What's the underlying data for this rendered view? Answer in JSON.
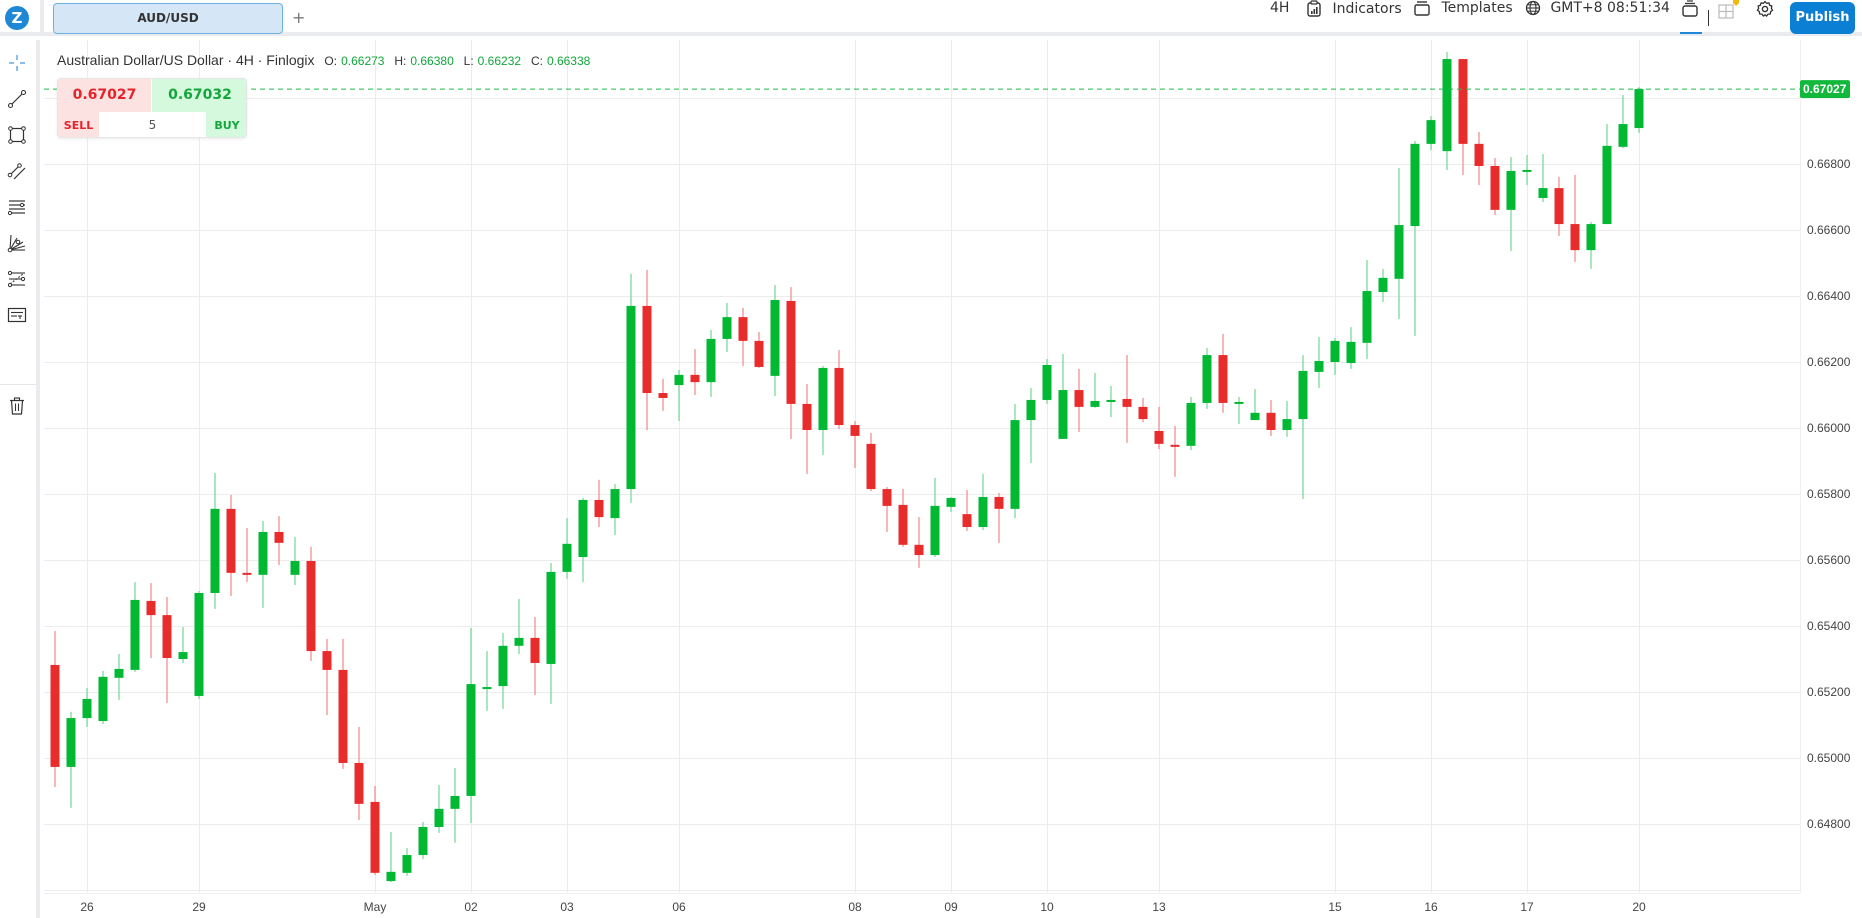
{
  "topbar": {
    "logo_glyph": "Z",
    "symbol_tab": "AUD/USD",
    "add_tab": "+",
    "timeframe": "4H",
    "indicators_label": "Indicators",
    "templates_label": "Templates",
    "timezone": "GMT+8",
    "clock": "08:51:34",
    "publish_label": "Publish",
    "icons": [
      "logo-icon",
      "indicators-icon",
      "templates-icon",
      "globe-icon",
      "layers-icon",
      "layout-grid-icon",
      "settings-gear-icon"
    ]
  },
  "toolbar": {
    "tools": [
      {
        "name": "crosshair-tool",
        "icon": "crosshair-icon"
      },
      {
        "name": "trend-line-tool",
        "icon": "trend-line-icon"
      },
      {
        "name": "rectangle-tool",
        "icon": "rectangle-icon"
      },
      {
        "name": "parallel-channel-tool",
        "icon": "parallel-channel-icon"
      },
      {
        "name": "horizontal-lines-tool",
        "icon": "horizontal-lines-icon"
      },
      {
        "name": "fib-fan-tool",
        "icon": "fib-fan-icon"
      },
      {
        "name": "fib-retracement-tool",
        "icon": "fib-retracement-icon"
      },
      {
        "name": "text-note-tool",
        "icon": "text-note-icon"
      },
      {
        "name": "delete-all-tool",
        "icon": "trash-icon"
      }
    ]
  },
  "legend": {
    "title": "Australian Dollar/US Dollar · 4H · Finlogix",
    "o_label": "O:",
    "o_value": "0.66273",
    "h_label": "H:",
    "h_value": "0.66380",
    "l_label": "L:",
    "l_value": "0.66232",
    "c_label": "C:",
    "c_value": "0.66338"
  },
  "trade_panel": {
    "sell_price": "0.67027",
    "buy_price": "0.67032",
    "sell_label": "SELL",
    "buy_label": "BUY",
    "quantity": "5"
  },
  "colors": {
    "up": "#00b833",
    "down": "#e82c2c",
    "up_wick": "#7dd99a",
    "down_wick": "#f09090",
    "grid": "#ececec",
    "current_price": "#1fbb4a",
    "accent": "#0a7fd4"
  },
  "chart_data": {
    "type": "candlestick",
    "title": "Australian Dollar/US Dollar · 4H · Finlogix",
    "symbol": "AUD/USD",
    "timeframe": "4H",
    "current_price": 0.67027,
    "current_price_label": "0.67027",
    "ylim": [
      0.6462,
      0.6716
    ],
    "y_ticks": [
      "0.64800",
      "0.65000",
      "0.65200",
      "0.65400",
      "0.65600",
      "0.65800",
      "0.66000",
      "0.66200",
      "0.66400",
      "0.66600",
      "0.66800"
    ],
    "y_tick_values": [
      0.648,
      0.65,
      0.652,
      0.654,
      0.656,
      0.658,
      0.66,
      0.662,
      0.664,
      0.666,
      0.668
    ],
    "x_ticks": [
      {
        "label": "26",
        "index": 2
      },
      {
        "label": "29",
        "index": 9
      },
      {
        "label": "May",
        "index": 20
      },
      {
        "label": "02",
        "index": 26
      },
      {
        "label": "03",
        "index": 32
      },
      {
        "label": "06",
        "index": 39
      },
      {
        "label": "08",
        "index": 50
      },
      {
        "label": "09",
        "index": 56
      },
      {
        "label": "10",
        "index": 62
      },
      {
        "label": "13",
        "index": 69
      },
      {
        "label": "15",
        "index": 80
      },
      {
        "label": "16",
        "index": 86
      },
      {
        "label": "17",
        "index": 92
      },
      {
        "label": "20",
        "index": 99
      }
    ],
    "grid": true,
    "candles": [
      [
        0.65282,
        0.65385,
        0.64912,
        0.64973
      ],
      [
        0.64973,
        0.6514,
        0.64849,
        0.65121
      ],
      [
        0.65121,
        0.65212,
        0.65094,
        0.65179
      ],
      [
        0.65112,
        0.65264,
        0.65103,
        0.65246
      ],
      [
        0.65243,
        0.65315,
        0.65176,
        0.6527
      ],
      [
        0.65267,
        0.65533,
        0.65261,
        0.65479
      ],
      [
        0.65476,
        0.6553,
        0.65303,
        0.65433
      ],
      [
        0.65433,
        0.65488,
        0.65167,
        0.65303
      ],
      [
        0.653,
        0.65397,
        0.65288,
        0.65321
      ],
      [
        0.65188,
        0.65506,
        0.65179,
        0.655
      ],
      [
        0.655,
        0.65864,
        0.65452,
        0.65755
      ],
      [
        0.65755,
        0.65797,
        0.65491,
        0.65561
      ],
      [
        0.65561,
        0.65697,
        0.65533,
        0.65555
      ],
      [
        0.65555,
        0.65718,
        0.65455,
        0.65685
      ],
      [
        0.65685,
        0.65733,
        0.65585,
        0.65652
      ],
      [
        0.65555,
        0.6567,
        0.65524,
        0.65597
      ],
      [
        0.65597,
        0.6564,
        0.65294,
        0.65324
      ],
      [
        0.65324,
        0.65361,
        0.6513,
        0.65267
      ],
      [
        0.65267,
        0.65361,
        0.64967,
        0.64985
      ],
      [
        0.64985,
        0.65094,
        0.64812,
        0.64861
      ],
      [
        0.64867,
        0.64915,
        0.64646,
        0.64652
      ],
      [
        0.64627,
        0.64776,
        0.64624,
        0.64655
      ],
      [
        0.64652,
        0.64727,
        0.64643,
        0.64706
      ],
      [
        0.64706,
        0.64806,
        0.64694,
        0.64791
      ],
      [
        0.64791,
        0.64918,
        0.64773,
        0.64846
      ],
      [
        0.64846,
        0.6497,
        0.64743,
        0.64885
      ],
      [
        0.64885,
        0.65394,
        0.64803,
        0.65224
      ],
      [
        0.65212,
        0.65324,
        0.65143,
        0.65215
      ],
      [
        0.65218,
        0.65379,
        0.65149,
        0.6534
      ],
      [
        0.6534,
        0.65482,
        0.65315,
        0.65364
      ],
      [
        0.65364,
        0.65427,
        0.65191,
        0.65288
      ],
      [
        0.65285,
        0.65591,
        0.65164,
        0.65564
      ],
      [
        0.65564,
        0.65727,
        0.65543,
        0.65649
      ],
      [
        0.65609,
        0.65788,
        0.65533,
        0.65782
      ],
      [
        0.65782,
        0.65843,
        0.657,
        0.6573
      ],
      [
        0.65727,
        0.6583,
        0.65676,
        0.65815
      ],
      [
        0.65815,
        0.66467,
        0.65773,
        0.6637
      ],
      [
        0.6637,
        0.66479,
        0.65994,
        0.66106
      ],
      [
        0.66106,
        0.66149,
        0.66052,
        0.66091
      ],
      [
        0.6613,
        0.66176,
        0.66021,
        0.66161
      ],
      [
        0.66161,
        0.66239,
        0.661,
        0.66139
      ],
      [
        0.66139,
        0.66297,
        0.66094,
        0.6627
      ],
      [
        0.6627,
        0.66379,
        0.6623,
        0.66336
      ],
      [
        0.66336,
        0.66364,
        0.66188,
        0.66264
      ],
      [
        0.66264,
        0.66291,
        0.66182,
        0.66185
      ],
      [
        0.66158,
        0.66433,
        0.66097,
        0.66388
      ],
      [
        0.66385,
        0.66427,
        0.65967,
        0.66073
      ],
      [
        0.66073,
        0.66133,
        0.65861,
        0.65994
      ],
      [
        0.65994,
        0.66188,
        0.65918,
        0.66182
      ],
      [
        0.66182,
        0.66236,
        0.65997,
        0.66009
      ],
      [
        0.66009,
        0.66021,
        0.65879,
        0.65976
      ],
      [
        0.65952,
        0.65985,
        0.65809,
        0.65815
      ],
      [
        0.65815,
        0.65821,
        0.65685,
        0.65764
      ],
      [
        0.65767,
        0.65815,
        0.6564,
        0.65646
      ],
      [
        0.65646,
        0.6573,
        0.65576,
        0.65615
      ],
      [
        0.65615,
        0.65849,
        0.65609,
        0.65764
      ],
      [
        0.65761,
        0.65791,
        0.65746,
        0.65788
      ],
      [
        0.65739,
        0.65812,
        0.65688,
        0.657
      ],
      [
        0.657,
        0.65861,
        0.65691,
        0.65791
      ],
      [
        0.65791,
        0.65803,
        0.65652,
        0.65755
      ],
      [
        0.65755,
        0.66073,
        0.65727,
        0.66024
      ],
      [
        0.66024,
        0.66121,
        0.65894,
        0.66085
      ],
      [
        0.66085,
        0.66209,
        0.66073,
        0.66191
      ],
      [
        0.65967,
        0.66224,
        0.65967,
        0.66115
      ],
      [
        0.66115,
        0.66179,
        0.65988,
        0.66064
      ],
      [
        0.66064,
        0.66167,
        0.66061,
        0.66082
      ],
      [
        0.66082,
        0.66127,
        0.66033,
        0.66085
      ],
      [
        0.66088,
        0.66221,
        0.65955,
        0.66064
      ],
      [
        0.66064,
        0.66091,
        0.66018,
        0.66027
      ],
      [
        0.65991,
        0.66064,
        0.65936,
        0.65952
      ],
      [
        0.65949,
        0.66006,
        0.65852,
        0.65946
      ],
      [
        0.65946,
        0.66094,
        0.65933,
        0.66076
      ],
      [
        0.66076,
        0.66242,
        0.66058,
        0.66221
      ],
      [
        0.66221,
        0.66285,
        0.66046,
        0.66076
      ],
      [
        0.66073,
        0.66094,
        0.66012,
        0.66079
      ],
      [
        0.66024,
        0.66118,
        0.66024,
        0.66046
      ],
      [
        0.66046,
        0.66085,
        0.65976,
        0.65994
      ],
      [
        0.65994,
        0.66082,
        0.65973,
        0.66027
      ],
      [
        0.66027,
        0.66221,
        0.65785,
        0.66173
      ],
      [
        0.6617,
        0.66276,
        0.66121,
        0.66203
      ],
      [
        0.662,
        0.66273,
        0.66161,
        0.66264
      ],
      [
        0.66197,
        0.66306,
        0.66179,
        0.66261
      ],
      [
        0.66258,
        0.66509,
        0.66209,
        0.66415
      ],
      [
        0.66412,
        0.66482,
        0.66382,
        0.66455
      ],
      [
        0.66452,
        0.66788,
        0.6633,
        0.66615
      ],
      [
        0.66612,
        0.6687,
        0.66279,
        0.66861
      ],
      [
        0.66861,
        0.66945,
        0.66842,
        0.66933
      ],
      [
        0.66839,
        0.67139,
        0.66782,
        0.67118
      ],
      [
        0.67118,
        0.67118,
        0.66767,
        0.66861
      ],
      [
        0.66861,
        0.66897,
        0.66736,
        0.66794
      ],
      [
        0.66794,
        0.66818,
        0.66645,
        0.66661
      ],
      [
        0.66661,
        0.66821,
        0.66536,
        0.66779
      ],
      [
        0.66779,
        0.66827,
        0.66736,
        0.66782
      ],
      [
        0.66697,
        0.6683,
        0.66685,
        0.66727
      ],
      [
        0.66727,
        0.66761,
        0.66582,
        0.66618
      ],
      [
        0.66618,
        0.66767,
        0.66503,
        0.66539
      ],
      [
        0.66539,
        0.66624,
        0.66482,
        0.66618
      ],
      [
        0.66618,
        0.66921,
        0.66618,
        0.66855
      ],
      [
        0.66852,
        0.67009,
        0.66848,
        0.66921
      ],
      [
        0.66909,
        0.67033,
        0.66894,
        0.67027
      ]
    ],
    "candle_format": [
      "open",
      "high",
      "low",
      "close"
    ]
  }
}
